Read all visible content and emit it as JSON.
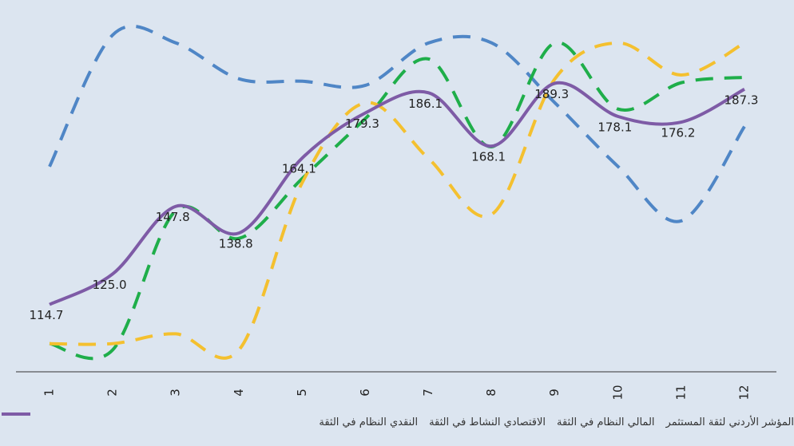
{
  "chart_data": {
    "type": "line",
    "categories": [
      "1",
      "2",
      "3",
      "4",
      "5",
      "6",
      "7",
      "8",
      "9",
      "10",
      "11",
      "12"
    ],
    "ylim": [
      92,
      212
    ],
    "series": [
      {
        "name": "النقدي النظام في الثقة",
        "color": "#4f86c6",
        "dashed": true,
        "values": [
          161.2,
          205.6,
          202.9,
          190.8,
          190.0,
          188.6,
          202.9,
          202.9,
          182.7,
          161.2,
          142.9,
          174.7
        ]
      },
      {
        "name": "الاقتصادي النشاط في الثقة",
        "color": "#1fae4a",
        "dashed": true,
        "values": [
          101.5,
          99.4,
          146.4,
          137.0,
          157.2,
          177.4,
          197.5,
          167.9,
          202.9,
          180.6,
          189.5,
          191.3
        ]
      },
      {
        "name": "المالي النظام في الثقة",
        "color": "#f4c02f",
        "dashed": true,
        "values": [
          101.5,
          101.5,
          104.8,
          99.4,
          155.8,
          182.7,
          163.9,
          145.1,
          190.8,
          202.9,
          192.1,
          202.9
        ]
      },
      {
        "name": "المؤشر الأردني لثقة المستثمر",
        "color": "#7e5ba6",
        "dashed": false,
        "values": [
          114.7,
          125.0,
          147.8,
          138.8,
          164.1,
          179.3,
          186.1,
          168.1,
          189.3,
          178.1,
          176.2,
          187.3
        ],
        "value_labels": [
          "114.7",
          "125.0",
          "147.8",
          "138.8",
          "164.1",
          "179.3",
          "186.1",
          "168.1",
          "189.3",
          "178.1",
          "176.2",
          "187.3"
        ]
      }
    ]
  }
}
